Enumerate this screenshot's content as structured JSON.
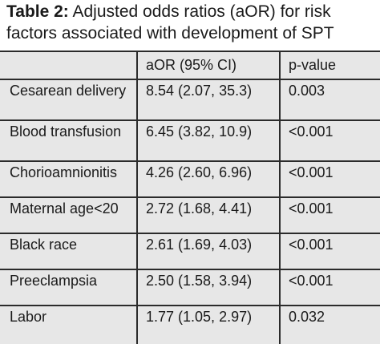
{
  "title": {
    "lead": "Table 2:",
    "text": " Adjusted odds ratios (aOR) for risk factors associated with development of SPT"
  },
  "table": {
    "headers": [
      "",
      "aOR (95% CI)",
      "p-value"
    ],
    "rows": [
      {
        "factor": "Cesarean delivery",
        "aor": "8.54 (2.07, 35.3)",
        "p": "0.003"
      },
      {
        "factor": "Blood transfusion",
        "aor": "6.45 (3.82, 10.9)",
        "p": "<0.001"
      },
      {
        "factor": "Chorioamnionitis",
        "aor": "4.26 (2.60, 6.96)",
        "p": "<0.001"
      },
      {
        "factor": "Maternal age<20",
        "aor": "2.72 (1.68, 4.41)",
        "p": "<0.001"
      },
      {
        "factor": "Black race",
        "aor": "2.61 (1.69, 4.03)",
        "p": "<0.001"
      },
      {
        "factor": "Preeclampsia",
        "aor": "2.50 (1.58, 3.94)",
        "p": "<0.001"
      },
      {
        "factor": "Labor",
        "aor": "1.77 (1.05, 2.97)",
        "p": "0.032"
      }
    ]
  }
}
